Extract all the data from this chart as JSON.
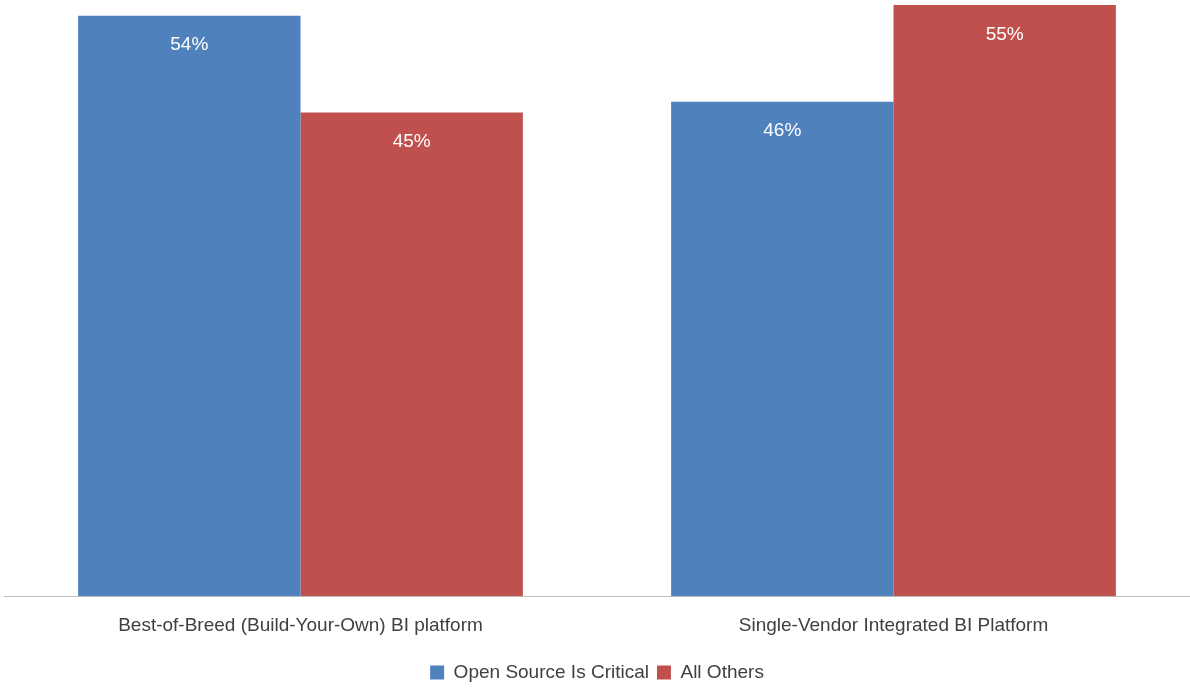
{
  "chart_data": {
    "type": "bar",
    "categories": [
      "Best-of-Breed (Build-Your-Own) BI platform",
      "Single-Vendor Integrated BI Platform"
    ],
    "series": [
      {
        "name": "Open Source Is Critical",
        "color": "#4f81bd",
        "values": [
          54,
          46
        ],
        "value_labels": [
          "54%",
          "46%"
        ]
      },
      {
        "name": "All Others",
        "color": "#c0504d",
        "values": [
          45,
          55
        ],
        "value_labels": [
          "45%",
          "55%"
        ]
      }
    ],
    "grid": false,
    "legend": "bottom"
  }
}
